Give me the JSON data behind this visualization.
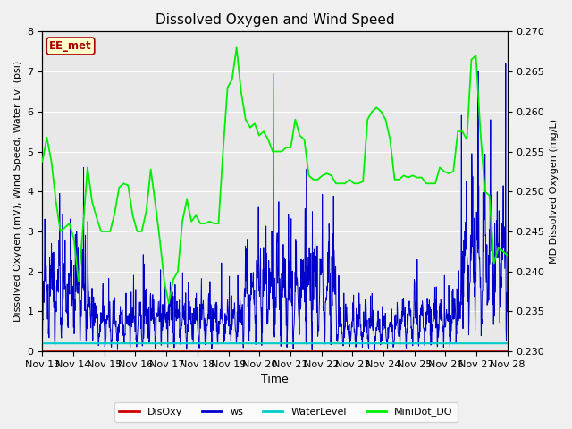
{
  "title": "Dissolved Oxygen and Wind Speed",
  "xlabel": "Time",
  "ylabel_left": "Dissolved Oxygen (mV), Wind Speed, Water Lvl (psi)",
  "ylabel_right": "MD Dissolved Oxygen (mg/L)",
  "ylim_left": [
    0.0,
    8.0
  ],
  "ylim_right": [
    0.23,
    0.27
  ],
  "yticks_left": [
    0.0,
    1.0,
    2.0,
    3.0,
    4.0,
    5.0,
    6.0,
    7.0,
    8.0
  ],
  "yticks_right": [
    0.23,
    0.235,
    0.24,
    0.245,
    0.25,
    0.255,
    0.26,
    0.265,
    0.27
  ],
  "xtick_labels": [
    "Nov 13",
    "Nov 14",
    "Nov 15",
    "Nov 16",
    "Nov 17",
    "Nov 18",
    "Nov 19",
    "Nov 20",
    "Nov 21",
    "Nov 22",
    "Nov 23",
    "Nov 24",
    "Nov 25",
    "Nov 26",
    "Nov 27",
    "Nov 28"
  ],
  "n_days": 16,
  "colors": {
    "DisOxy": "#cc0000",
    "ws": "#0000cc",
    "WaterLevel": "#00cccc",
    "MiniDot_DO": "#00ee00"
  },
  "legend_label": "EE_met",
  "fig_bg": "#f0f0f0",
  "plot_bg": "#e8e8e8",
  "grid_color": "#ffffff",
  "md_values": [
    4.75,
    5.35,
    4.75,
    3.75,
    3.0,
    3.1,
    3.2,
    2.8,
    1.75,
    3.1,
    4.6,
    3.75,
    3.35,
    3.0,
    3.0,
    3.0,
    3.45,
    4.1,
    4.2,
    4.15,
    3.4,
    3.0,
    3.0,
    3.5,
    4.55,
    3.7,
    2.8,
    1.75,
    1.2,
    1.8,
    2.0,
    3.25,
    3.8,
    3.25,
    3.4,
    3.2,
    3.2,
    3.25,
    3.2,
    3.2,
    5.0,
    6.6,
    6.8,
    7.6,
    6.5,
    5.8,
    5.6,
    5.7,
    5.4,
    5.5,
    5.3,
    5.0,
    5.0,
    5.0,
    5.1,
    5.1,
    5.8,
    5.4,
    5.3,
    4.4,
    4.3,
    4.3,
    4.4,
    4.45,
    4.4,
    4.2,
    4.2,
    4.2,
    4.3,
    4.2,
    4.2,
    4.25,
    5.8,
    6.0,
    6.1,
    6.0,
    5.8,
    5.3,
    4.3,
    4.3,
    4.4,
    4.35,
    4.4,
    4.35,
    4.35,
    4.2,
    4.2,
    4.2,
    4.6,
    4.5,
    4.45,
    4.5,
    5.5,
    5.5,
    5.3,
    7.3,
    7.4,
    5.5,
    4.0,
    3.9,
    2.2,
    2.6,
    2.5,
    2.4
  ],
  "ws_seed": 1234,
  "water_level_value": 0.2
}
